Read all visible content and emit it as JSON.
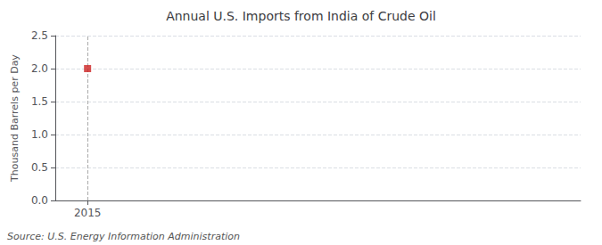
{
  "chart_data": {
    "type": "scatter",
    "title": "Annual U.S. Imports from India of Crude Oil",
    "ylabel": "Thousand Barrels per Day",
    "annotations": [
      "Source: U.S. Energy Information Administration"
    ],
    "x": [
      2015
    ],
    "values": [
      2.0
    ],
    "color": "#cc2222",
    "marker": "square",
    "xlim": [
      2014.3,
      2025.7
    ],
    "xticks": [
      2015
    ],
    "ylim": [
      0.0,
      2.5
    ],
    "yticks": [
      {
        "value": 0.0,
        "label": "0.0"
      },
      0.5,
      {
        "value": 1.0,
        "label": "1.0"
      },
      1.5,
      {
        "value": 2.0,
        "label": "2.0"
      },
      2.5
    ],
    "grid": true
  }
}
